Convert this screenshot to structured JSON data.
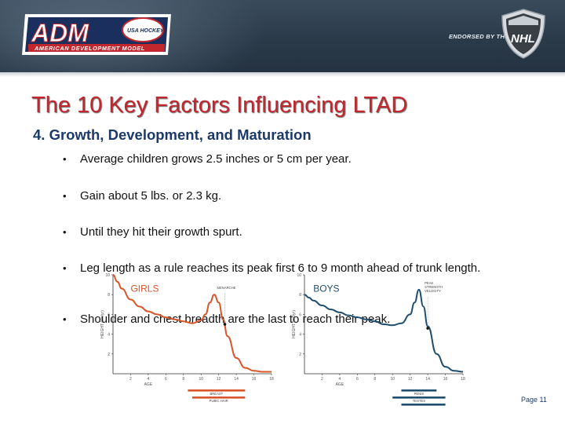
{
  "header": {
    "brand": "ADM",
    "tagline": "AMERICAN DEVELOPMENT MODEL",
    "usa_hockey": "USA HOCKEY",
    "endorsed": "ENDORSED BY THE",
    "nhl": "NHL",
    "colors": {
      "band": "#2b3a49",
      "logo_navy": "#1b2f5e",
      "logo_red": "#c1272d"
    }
  },
  "slide": {
    "title": "The 10 Key Factors Influencing LTAD",
    "subtitle": "4. Growth, Development, and Maturation",
    "bullet_glyph": "•",
    "bullets": [
      "Average children grows 2.5 inches or 5 cm per year.",
      "Gain about 5 lbs. or 2.3 kg.",
      "Until they hit their growth spurt.",
      "Leg length as a rule reaches its peak first 6 to 9 month ahead of trunk length.",
      "Shoulder and chest breadth are the last to reach their peak."
    ],
    "page": "Page 11",
    "colors": {
      "title": "#c1272d",
      "subtitle": "#1b3a6b",
      "girls_curve": "#d9562b",
      "boys_curve": "#1f4e6f"
    }
  },
  "chart_data": [
    {
      "type": "line",
      "title": "GIRLS",
      "xlabel": "AGE",
      "ylabel": "HEIGHT (cm/yr)",
      "x": [
        0,
        0.5,
        1,
        2,
        3,
        4,
        5,
        6,
        7,
        8,
        9,
        10,
        10.5,
        11,
        11.5,
        12,
        12.5,
        13,
        14,
        15,
        16,
        17,
        18
      ],
      "values": [
        10,
        9.3,
        8.6,
        7.5,
        6.8,
        6.3,
        6.0,
        5.7,
        5.5,
        5.3,
        5.1,
        5.4,
        6.0,
        7.2,
        8.0,
        7.2,
        5.5,
        3.8,
        1.6,
        0.6,
        0.3,
        0.2,
        0.2
      ],
      "xlim": [
        0,
        18
      ],
      "ylim": [
        0,
        10
      ],
      "x_ticks": [
        "2",
        "4",
        "6",
        "8",
        "10",
        "12",
        "14",
        "16",
        "18"
      ],
      "y_ticks": [
        "2",
        "4",
        "6",
        "8",
        "10"
      ],
      "annotations": [
        {
          "text": "MENARCHE",
          "x": 12.7,
          "y": 5.0
        }
      ],
      "bars": [
        {
          "label": "BREAST",
          "from": 8.5,
          "to": 15,
          "color": "#d9562b"
        },
        {
          "label": "PUBIC HAIR",
          "from": 9,
          "to": 15,
          "color": "#d9562b"
        }
      ]
    },
    {
      "type": "line",
      "title": "BOYS",
      "xlabel": "AGE",
      "ylabel": "HEIGHT (cm/yr)",
      "x": [
        0,
        0.5,
        1,
        2,
        3,
        4,
        5,
        6,
        7,
        8,
        9,
        10,
        11,
        12,
        12.5,
        13,
        13.5,
        14,
        15,
        16,
        17,
        18
      ],
      "values": [
        8.0,
        7.7,
        7.4,
        6.9,
        6.5,
        6.2,
        5.9,
        5.7,
        5.5,
        5.3,
        5.0,
        4.9,
        5.1,
        6.0,
        7.2,
        8.5,
        6.8,
        4.8,
        2.0,
        0.7,
        0.3,
        0.2
      ],
      "xlim": [
        0,
        18
      ],
      "ylim": [
        0,
        10
      ],
      "x_ticks": [
        "2",
        "4",
        "6",
        "8",
        "10",
        "12",
        "14",
        "16",
        "18"
      ],
      "y_ticks": [
        "2",
        "4",
        "6",
        "8",
        "10"
      ],
      "annotations": [
        {
          "text": "PEAK STRENGTH VELOCITY",
          "x": 14.0,
          "y": 4.6
        }
      ],
      "bars": [
        {
          "label": "PENIS",
          "from": 11,
          "to": 15,
          "color": "#1f4e6f"
        },
        {
          "label": "TESTES",
          "from": 10,
          "to": 16,
          "color": "#1f4e6f"
        },
        {
          "label": "PUBIC HAIR",
          "from": 11,
          "to": 16,
          "color": "#1f4e6f"
        }
      ]
    }
  ]
}
